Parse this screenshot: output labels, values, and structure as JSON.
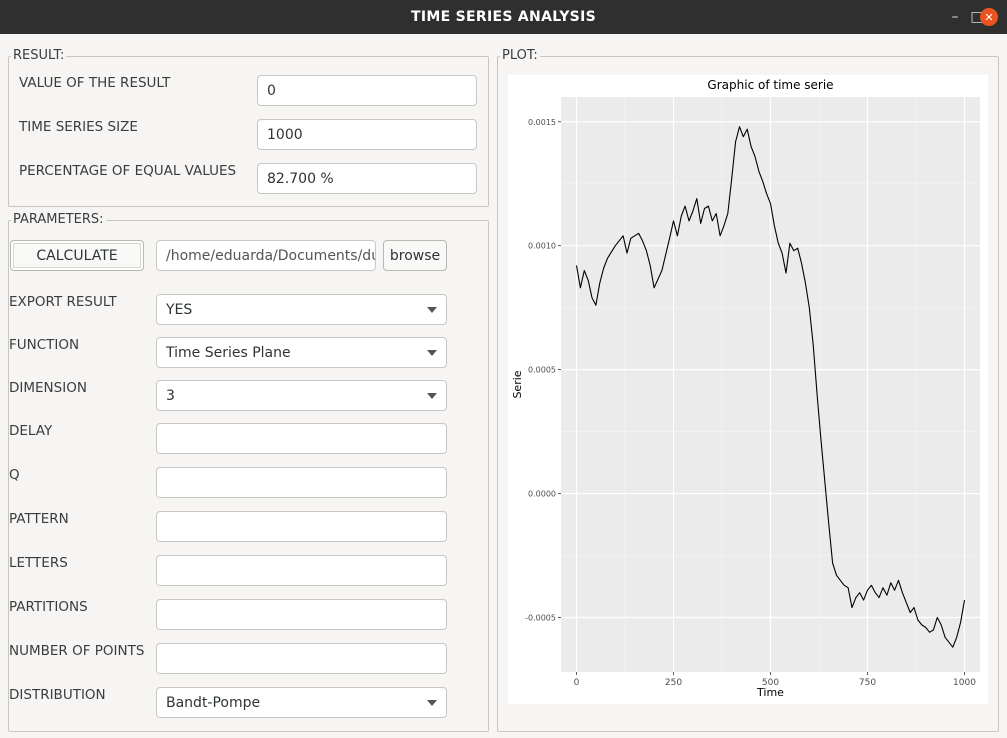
{
  "window": {
    "title": "TIME SERIES ANALYSIS",
    "minimize_glyph": "–",
    "maximize_glyph": "□",
    "close_glyph": "✕"
  },
  "result": {
    "title": "RESULT:",
    "value_label": "VALUE OF THE RESULT",
    "value": "0",
    "size_label": "TIME SERIES SIZE",
    "size": "1000",
    "equal_label": "PERCENTAGE OF EQUAL VALUES",
    "equal": "82.700 %"
  },
  "parameters": {
    "title": "PARAMETERS:",
    "calculate_label": "CALCULATE",
    "path": "/home/eduarda/Documents/du",
    "browse_label": "browse",
    "export_label": "EXPORT RESULT",
    "export_value": "YES",
    "function_label": "FUNCTION",
    "function_value": "Time Series Plane",
    "dimension_label": "DIMENSION",
    "dimension_value": "3",
    "delay_label": "DELAY",
    "delay_value": "",
    "q_label": "Q",
    "q_value": "",
    "pattern_label": "PATTERN",
    "pattern_value": "",
    "letters_label": "LETTERS",
    "letters_value": "",
    "partitions_label": "PARTITIONS",
    "partitions_value": "",
    "points_label": "NUMBER OF POINTS",
    "points_value": "",
    "distribution_label": "DISTRIBUTION",
    "distribution_value": "Bandt-Pompe"
  },
  "plot": {
    "title": "PLOT:",
    "chart_data": {
      "type": "line",
      "title": "Graphic of time serie",
      "xlabel": "Time",
      "ylabel": "Serie",
      "xlim": [
        -40,
        1040
      ],
      "ylim": [
        -0.00072,
        0.0016
      ],
      "x_ticks": [
        0,
        250,
        500,
        750,
        1000
      ],
      "x_tick_labels": [
        "0",
        "250",
        "500",
        "750",
        "1000"
      ],
      "y_ticks": [
        -0.0005,
        0.0,
        0.0005,
        0.001,
        0.0015
      ],
      "y_tick_labels": [
        "-0.0005",
        "0.0000",
        "0.0005",
        "0.0010",
        "0.0015"
      ],
      "grid": true,
      "series": [
        {
          "x": [
            0,
            10,
            20,
            30,
            40,
            50,
            60,
            70,
            80,
            100,
            120,
            130,
            140,
            160,
            170,
            180,
            190,
            200,
            220,
            240,
            250,
            260,
            270,
            280,
            290,
            300,
            310,
            320,
            330,
            340,
            350,
            360,
            370,
            380,
            390,
            400,
            410,
            420,
            430,
            440,
            450,
            460,
            470,
            480,
            490,
            500,
            510,
            520,
            530,
            540,
            550,
            560,
            570,
            580,
            590,
            600,
            610,
            620,
            630,
            640,
            650,
            660,
            670,
            680,
            690,
            700,
            710,
            720,
            730,
            740,
            750,
            760,
            770,
            780,
            790,
            800,
            810,
            820,
            830,
            840,
            850,
            860,
            870,
            880,
            890,
            900,
            910,
            920,
            930,
            940,
            950,
            960,
            970,
            980,
            990,
            1000
          ],
          "y": [
            0.00092,
            0.00083,
            0.0009,
            0.00086,
            0.00079,
            0.00076,
            0.00085,
            0.00091,
            0.00095,
            0.001,
            0.00104,
            0.00097,
            0.00103,
            0.00105,
            0.00102,
            0.00098,
            0.00092,
            0.00083,
            0.0009,
            0.00103,
            0.0011,
            0.00104,
            0.00112,
            0.00116,
            0.0011,
            0.00114,
            0.00119,
            0.00109,
            0.00115,
            0.00116,
            0.0011,
            0.00113,
            0.00104,
            0.00108,
            0.00113,
            0.00127,
            0.00142,
            0.00148,
            0.00144,
            0.00147,
            0.0014,
            0.00136,
            0.0013,
            0.00126,
            0.00121,
            0.00117,
            0.00108,
            0.00101,
            0.00097,
            0.00089,
            0.00101,
            0.00098,
            0.00099,
            0.00093,
            0.00085,
            0.00075,
            0.0006,
            0.0004,
            0.00022,
            5e-05,
            -0.00012,
            -0.00028,
            -0.00033,
            -0.00035,
            -0.00037,
            -0.00038,
            -0.00046,
            -0.00042,
            -0.0004,
            -0.00043,
            -0.00039,
            -0.00037,
            -0.0004,
            -0.00042,
            -0.00038,
            -0.00041,
            -0.00036,
            -0.00039,
            -0.00035,
            -0.0004,
            -0.00044,
            -0.00048,
            -0.00046,
            -0.00051,
            -0.00053,
            -0.00054,
            -0.00056,
            -0.00055,
            -0.0005,
            -0.00053,
            -0.00058,
            -0.0006,
            -0.00062,
            -0.00058,
            -0.00052,
            -0.00043
          ]
        }
      ]
    }
  }
}
